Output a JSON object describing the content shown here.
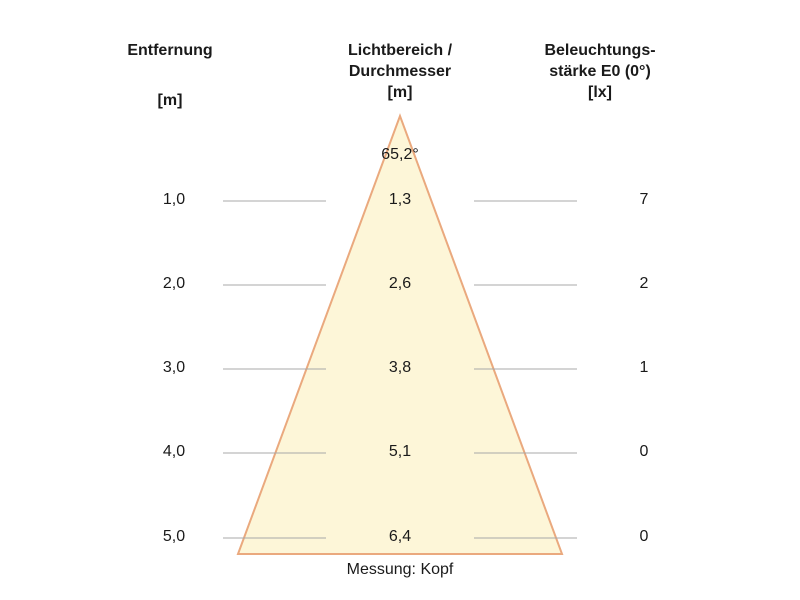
{
  "headers": {
    "distance": {
      "lines": [
        "Entfernung"
      ],
      "unit": "[m]"
    },
    "diameter": {
      "lines": [
        "Lichtbereich /",
        "Durchmesser"
      ],
      "unit": "[m]"
    },
    "illuminance": {
      "lines": [
        "Beleuchtungs-",
        "stärke E0 (0°)"
      ],
      "unit": "[lx]"
    }
  },
  "beam_angle": "65,2°",
  "rows": [
    {
      "distance": "1,0",
      "diameter": "1,3",
      "lux": "7"
    },
    {
      "distance": "2,0",
      "diameter": "2,6",
      "lux": "2"
    },
    {
      "distance": "3,0",
      "diameter": "3,8",
      "lux": "1"
    },
    {
      "distance": "4,0",
      "diameter": "5,1",
      "lux": "0"
    },
    {
      "distance": "5,0",
      "diameter": "6,4",
      "lux": "0"
    }
  ],
  "caption": "Messung: Kopf",
  "colors": {
    "cone_fill": "#fdf6d8",
    "cone_edge": "#eaa97e",
    "guide_line": "#a8a8a8"
  }
}
